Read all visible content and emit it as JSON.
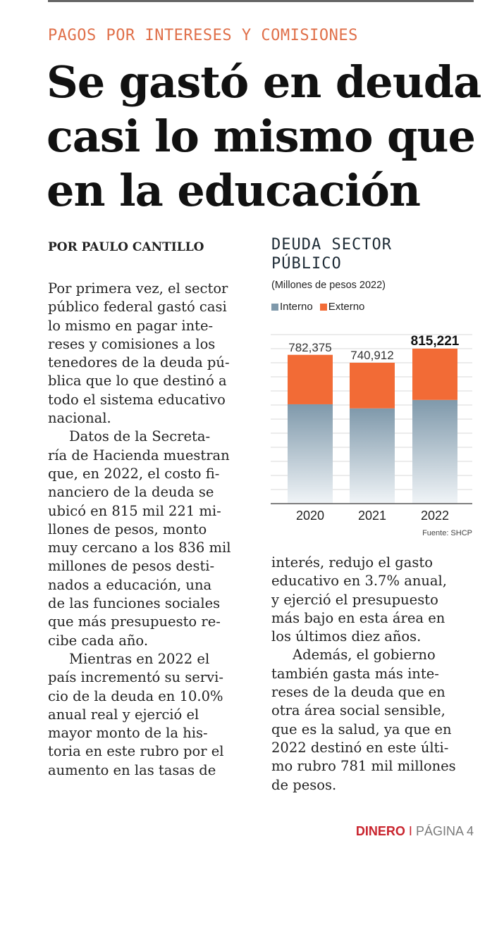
{
  "article": {
    "kicker": "PAGOS POR INTERESES Y COMISIONES",
    "headline_lines": [
      "Se gastó en deuda",
      "casi lo mismo que",
      "en la educación"
    ],
    "byline": "POR PAULO CANTILLO",
    "col1_lines": [
      "Por primera vez, el sector",
      "público federal gastó casi",
      "lo mismo en pagar inte-",
      "reses y comisiones a los",
      "tenedores de la deuda pú-",
      "blica que lo que destinó a",
      "todo el sistema educativo",
      "nacional.",
      "Datos de la Secreta-",
      "ría de Hacienda muestran",
      "que, en 2022, el costo fi-",
      "nanciero de la deuda se",
      "ubicó en 815 mil 221 mi-",
      "llones de pesos, monto",
      "muy cercano a los 836 mil",
      "millones de pesos desti-",
      "nados a educación, una",
      "de las funciones sociales",
      "que más presupuesto re-",
      "cibe cada año.",
      "Mientras en 2022 el",
      "país incrementó su servi-",
      "cio de la deuda en 10.0%",
      "anual real y ejerció el",
      "mayor monto de la his-",
      "toria en este rubro por el",
      "aumento en las tasas de"
    ],
    "col1_indent": [
      8,
      20
    ],
    "col2_lines": [
      "interés, redujo el gasto",
      "educativo en 3.7% anual,",
      "y ejerció el presupuesto",
      "más bajo en esta área en",
      "los últimos diez años.",
      "Además, el gobierno",
      "también gasta más inte-",
      "reses de la deuda que en",
      "otra área social sensible,",
      "que es la salud, ya que en",
      "2022 destinó en este últi-",
      "mo rubro 781 mil millones",
      "de pesos."
    ],
    "col2_indent": [
      5
    ],
    "footer": {
      "section": "DINERO",
      "separator": "I",
      "page": "PÁGINA 4"
    }
  },
  "colors": {
    "interno": "#7f99ab",
    "externo": "#f26b36",
    "kicker": "#e0704a",
    "section": "#c9242e"
  },
  "chart_data": {
    "type": "bar",
    "stacked": true,
    "title_lines": [
      "DEUDA SECTOR",
      "PÚBLICO"
    ],
    "subtitle": "(Millones de pesos 2022)",
    "categories": [
      "2020",
      "2021",
      "2022"
    ],
    "totals": [
      782375,
      740912,
      815221
    ],
    "total_labels": [
      "782,375",
      "740,912",
      "815,221"
    ],
    "highlight_index": 2,
    "series": [
      {
        "name": "Interno",
        "values": [
          522375,
          500912,
          545221
        ]
      },
      {
        "name": "Externo",
        "values": [
          260000,
          240000,
          270000
        ]
      }
    ],
    "ylim": [
      0,
      1000000
    ],
    "grid": true,
    "legend_position": "top-left",
    "source": "Fuente: SHCP"
  }
}
